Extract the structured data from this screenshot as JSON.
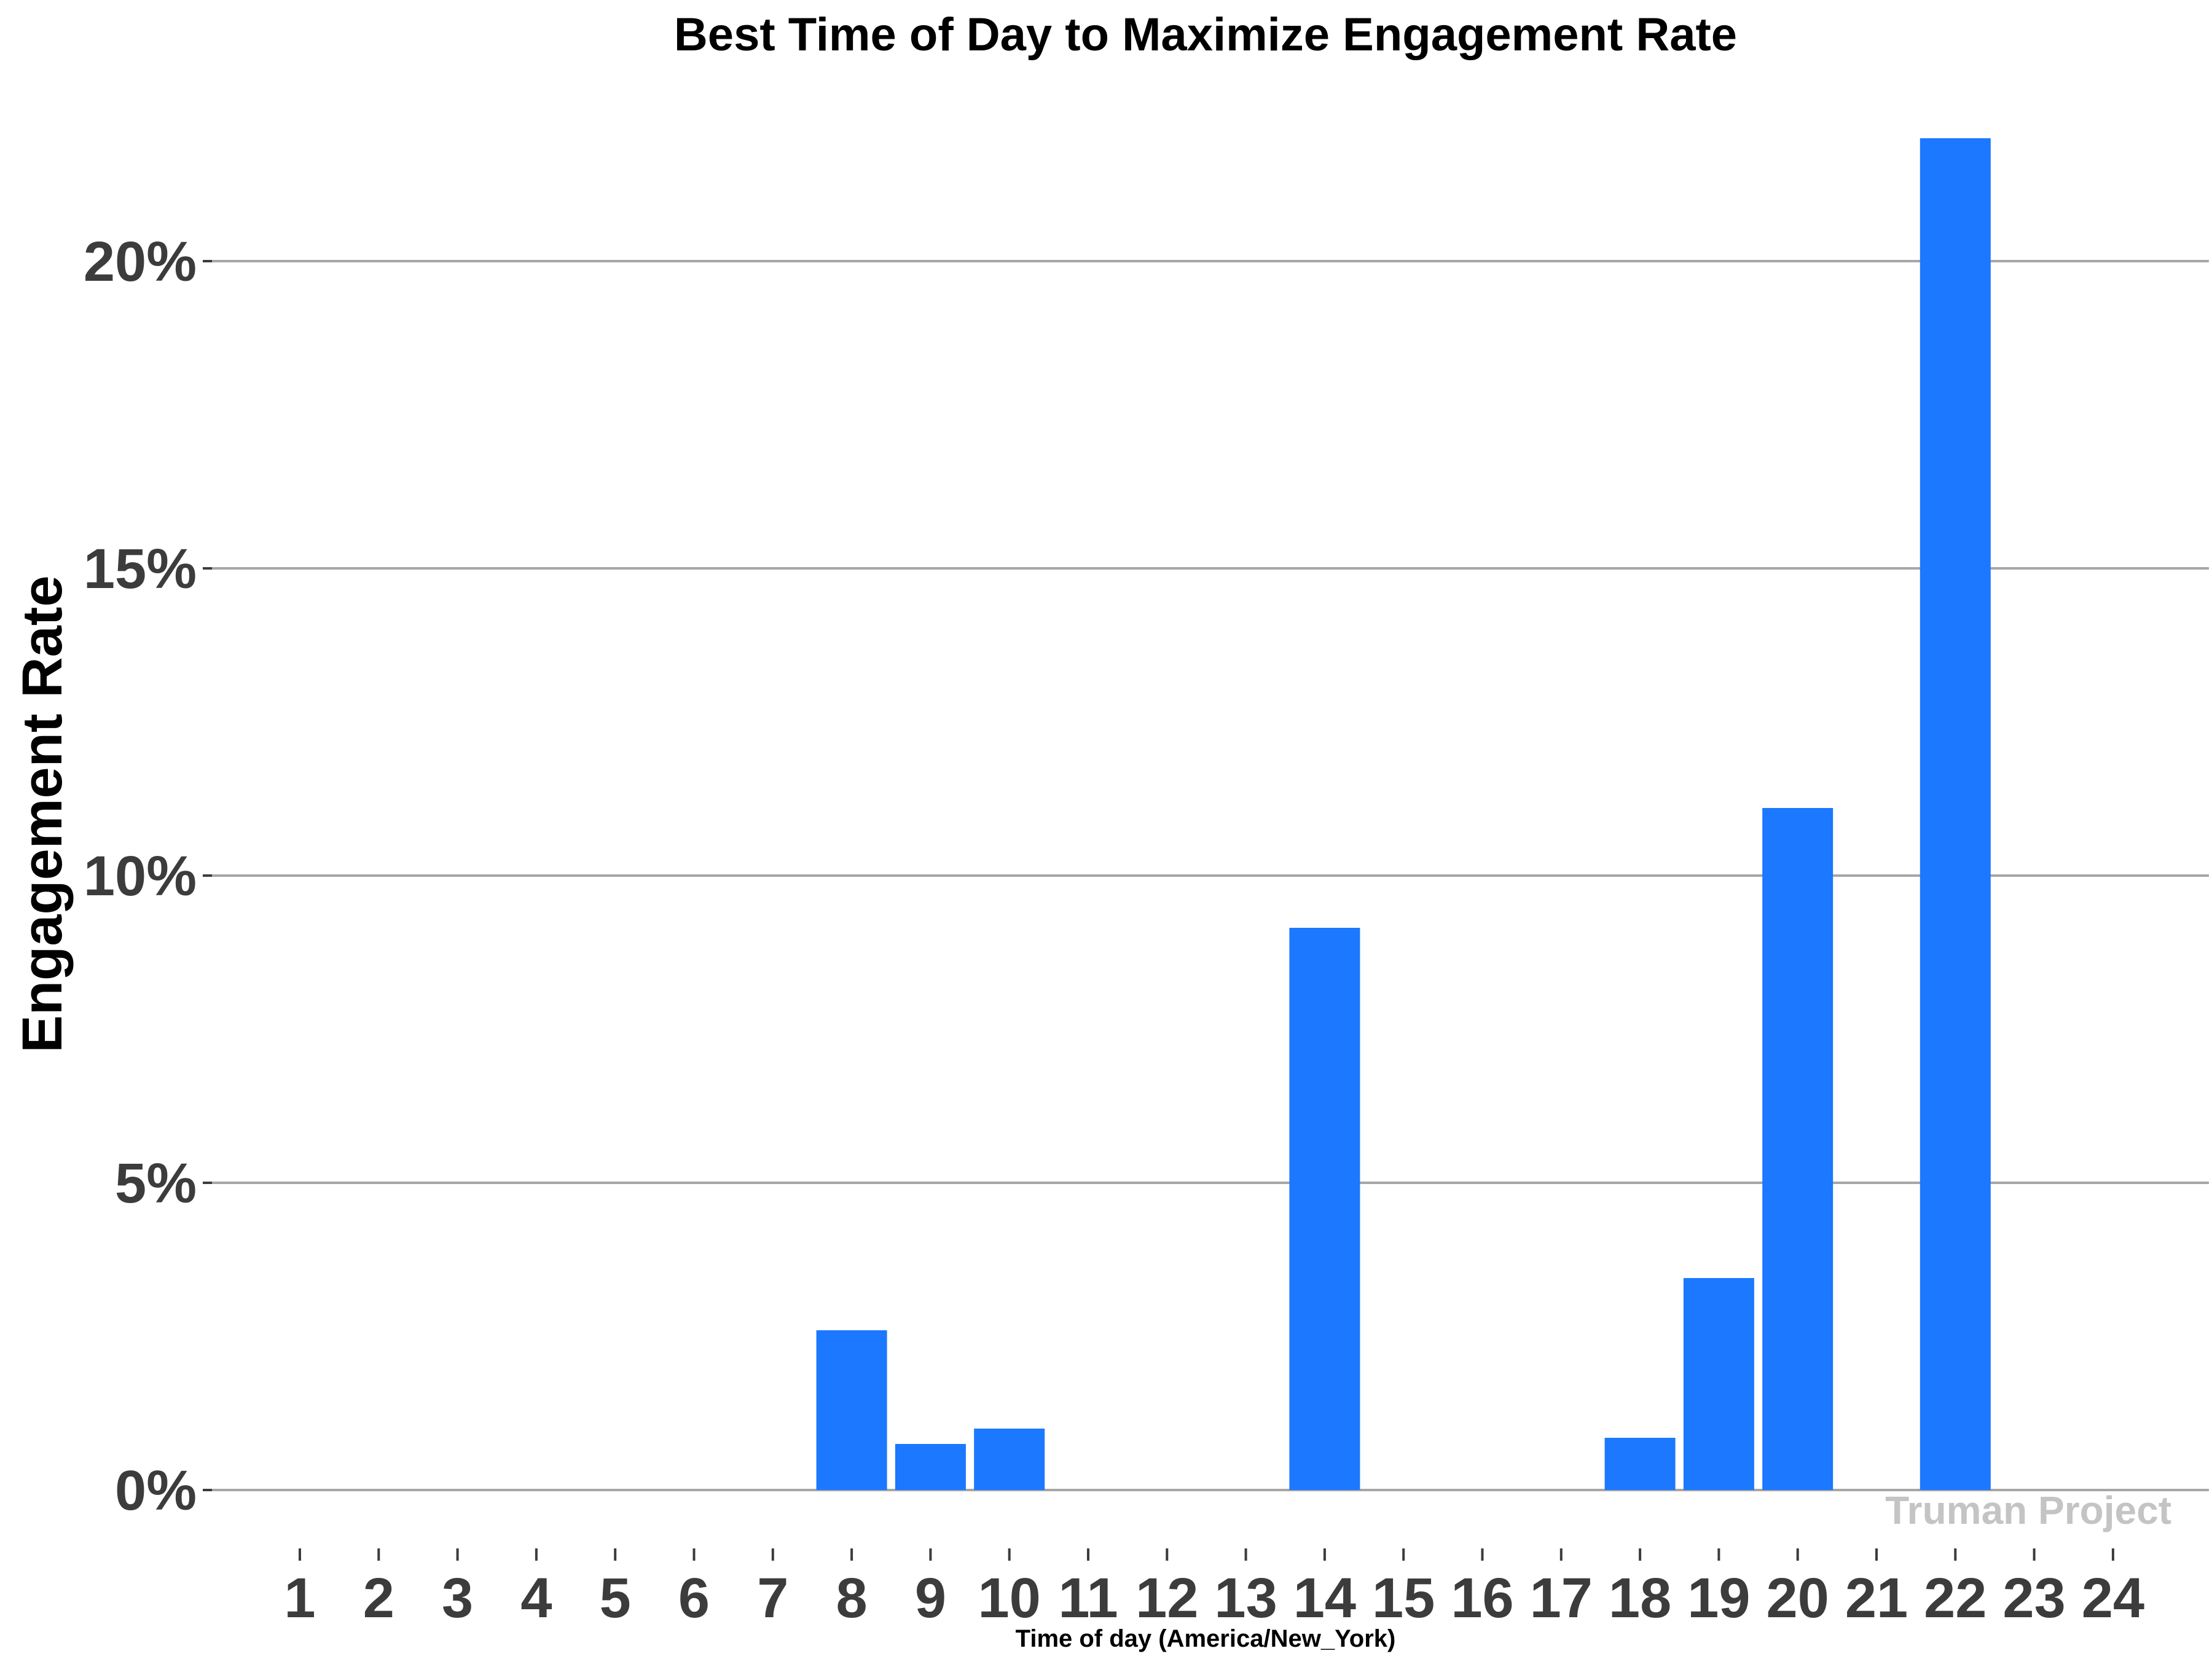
{
  "chart_data": {
    "type": "bar",
    "title": "Best Time of Day to Maximize Engagement Rate",
    "xlabel": "Time of day (America/New_York)",
    "ylabel": "Engagement Rate",
    "categories": [
      "1",
      "2",
      "3",
      "4",
      "5",
      "6",
      "7",
      "8",
      "9",
      "10",
      "11",
      "12",
      "13",
      "14",
      "15",
      "16",
      "17",
      "18",
      "19",
      "20",
      "21",
      "22",
      "23",
      "24"
    ],
    "values": [
      0,
      0,
      0,
      0,
      0,
      0,
      0,
      2.6,
      0.75,
      1.0,
      0,
      0,
      0,
      9.15,
      0,
      0,
      0,
      0.85,
      3.45,
      11.1,
      0,
      22.0,
      0,
      0
    ],
    "ylim": [
      0,
      22
    ],
    "yticks": [
      0,
      5,
      10,
      15,
      20
    ],
    "ytick_labels": [
      "0%",
      "5%",
      "10%",
      "15%",
      "20%"
    ],
    "grid": true,
    "legend": "none",
    "bar_color": "#1c78fe",
    "watermark": "Truman Project"
  }
}
